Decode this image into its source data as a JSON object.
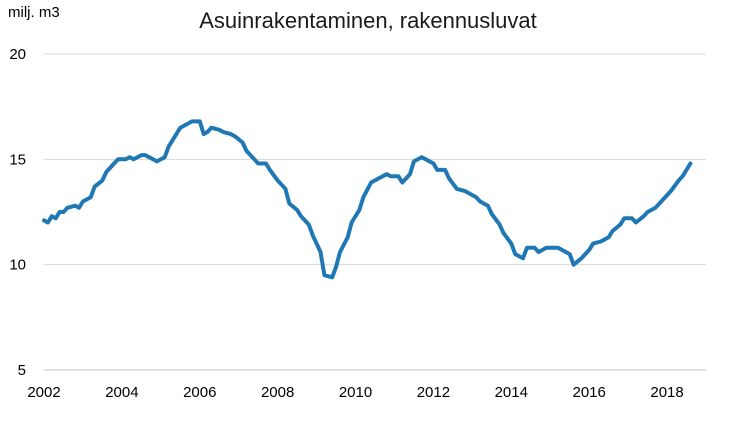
{
  "chart_data": {
    "type": "line",
    "title": "Asuinrakentaminen, rakennusluvat",
    "ylabel": "milj. m3",
    "xlabel": "",
    "xlim": [
      2002,
      2019
    ],
    "ylim": [
      5,
      20
    ],
    "yticks": [
      5,
      10,
      15,
      20
    ],
    "xticks": [
      2002,
      2004,
      2006,
      2008,
      2010,
      2012,
      2014,
      2016,
      2018
    ],
    "grid": "horizontal",
    "legend": "none",
    "colors": {
      "series": "#1f78b4",
      "grid": "#d9d9d9"
    },
    "series": [
      {
        "x": [
          2002.0,
          2002.1,
          2002.2,
          2002.3,
          2002.4,
          2002.5,
          2002.6,
          2002.8,
          2002.9,
          2003.0,
          2003.2,
          2003.3,
          2003.5,
          2003.6,
          2003.8,
          2003.9,
          2004.1,
          2004.2,
          2004.3,
          2004.5,
          2004.6,
          2004.8,
          2004.9,
          2005.1,
          2005.2,
          2005.4,
          2005.5,
          2005.7,
          2005.8,
          2006.0,
          2006.1,
          2006.2,
          2006.3,
          2006.5,
          2006.6,
          2006.8,
          2006.9,
          2007.1,
          2007.2,
          2007.4,
          2007.5,
          2007.7,
          2007.8,
          2008.0,
          2008.2,
          2008.3,
          2008.5,
          2008.6,
          2008.8,
          2008.9,
          2009.1,
          2009.2,
          2009.4,
          2009.5,
          2009.6,
          2009.8,
          2009.9,
          2010.1,
          2010.2,
          2010.4,
          2010.6,
          2010.8,
          2010.9,
          2011.1,
          2011.2,
          2011.4,
          2011.5,
          2011.7,
          2011.8,
          2012.0,
          2012.1,
          2012.3,
          2012.4,
          2012.6,
          2012.8,
          2012.9,
          2013.1,
          2013.2,
          2013.4,
          2013.5,
          2013.7,
          2013.8,
          2014.0,
          2014.1,
          2014.3,
          2014.4,
          2014.6,
          2014.7,
          2014.9,
          2015.0,
          2015.2,
          2015.3,
          2015.5,
          2015.6,
          2015.8,
          2016.0,
          2016.1,
          2016.3,
          2016.5,
          2016.6,
          2016.8,
          2016.9,
          2017.1,
          2017.2,
          2017.4,
          2017.5,
          2017.7,
          2017.8,
          2018.0,
          2018.1,
          2018.3,
          2018.4,
          2018.6
        ],
        "values": [
          12.1,
          12.0,
          12.3,
          12.2,
          12.5,
          12.5,
          12.7,
          12.8,
          12.7,
          13.0,
          13.2,
          13.7,
          14.0,
          14.4,
          14.8,
          15.0,
          15.0,
          15.1,
          15.0,
          15.2,
          15.2,
          15.0,
          14.9,
          15.1,
          15.6,
          16.2,
          16.5,
          16.7,
          16.8,
          16.8,
          16.2,
          16.3,
          16.5,
          16.4,
          16.3,
          16.2,
          16.1,
          15.8,
          15.4,
          15.0,
          14.8,
          14.8,
          14.5,
          14.0,
          13.6,
          12.9,
          12.6,
          12.3,
          11.9,
          11.4,
          10.6,
          9.5,
          9.4,
          9.9,
          10.6,
          11.3,
          12.0,
          12.6,
          13.2,
          13.9,
          14.1,
          14.3,
          14.2,
          14.2,
          13.9,
          14.3,
          14.9,
          15.1,
          15.0,
          14.8,
          14.5,
          14.5,
          14.1,
          13.6,
          13.5,
          13.4,
          13.2,
          13.0,
          12.8,
          12.4,
          11.9,
          11.5,
          11.0,
          10.5,
          10.3,
          10.8,
          10.8,
          10.6,
          10.8,
          10.8,
          10.8,
          10.7,
          10.5,
          10.0,
          10.3,
          10.7,
          11.0,
          11.1,
          11.3,
          11.6,
          11.9,
          12.2,
          12.2,
          12.0,
          12.3,
          12.5,
          12.7,
          12.9,
          13.3,
          13.5,
          14.0,
          14.2,
          14.8
        ]
      }
    ]
  }
}
